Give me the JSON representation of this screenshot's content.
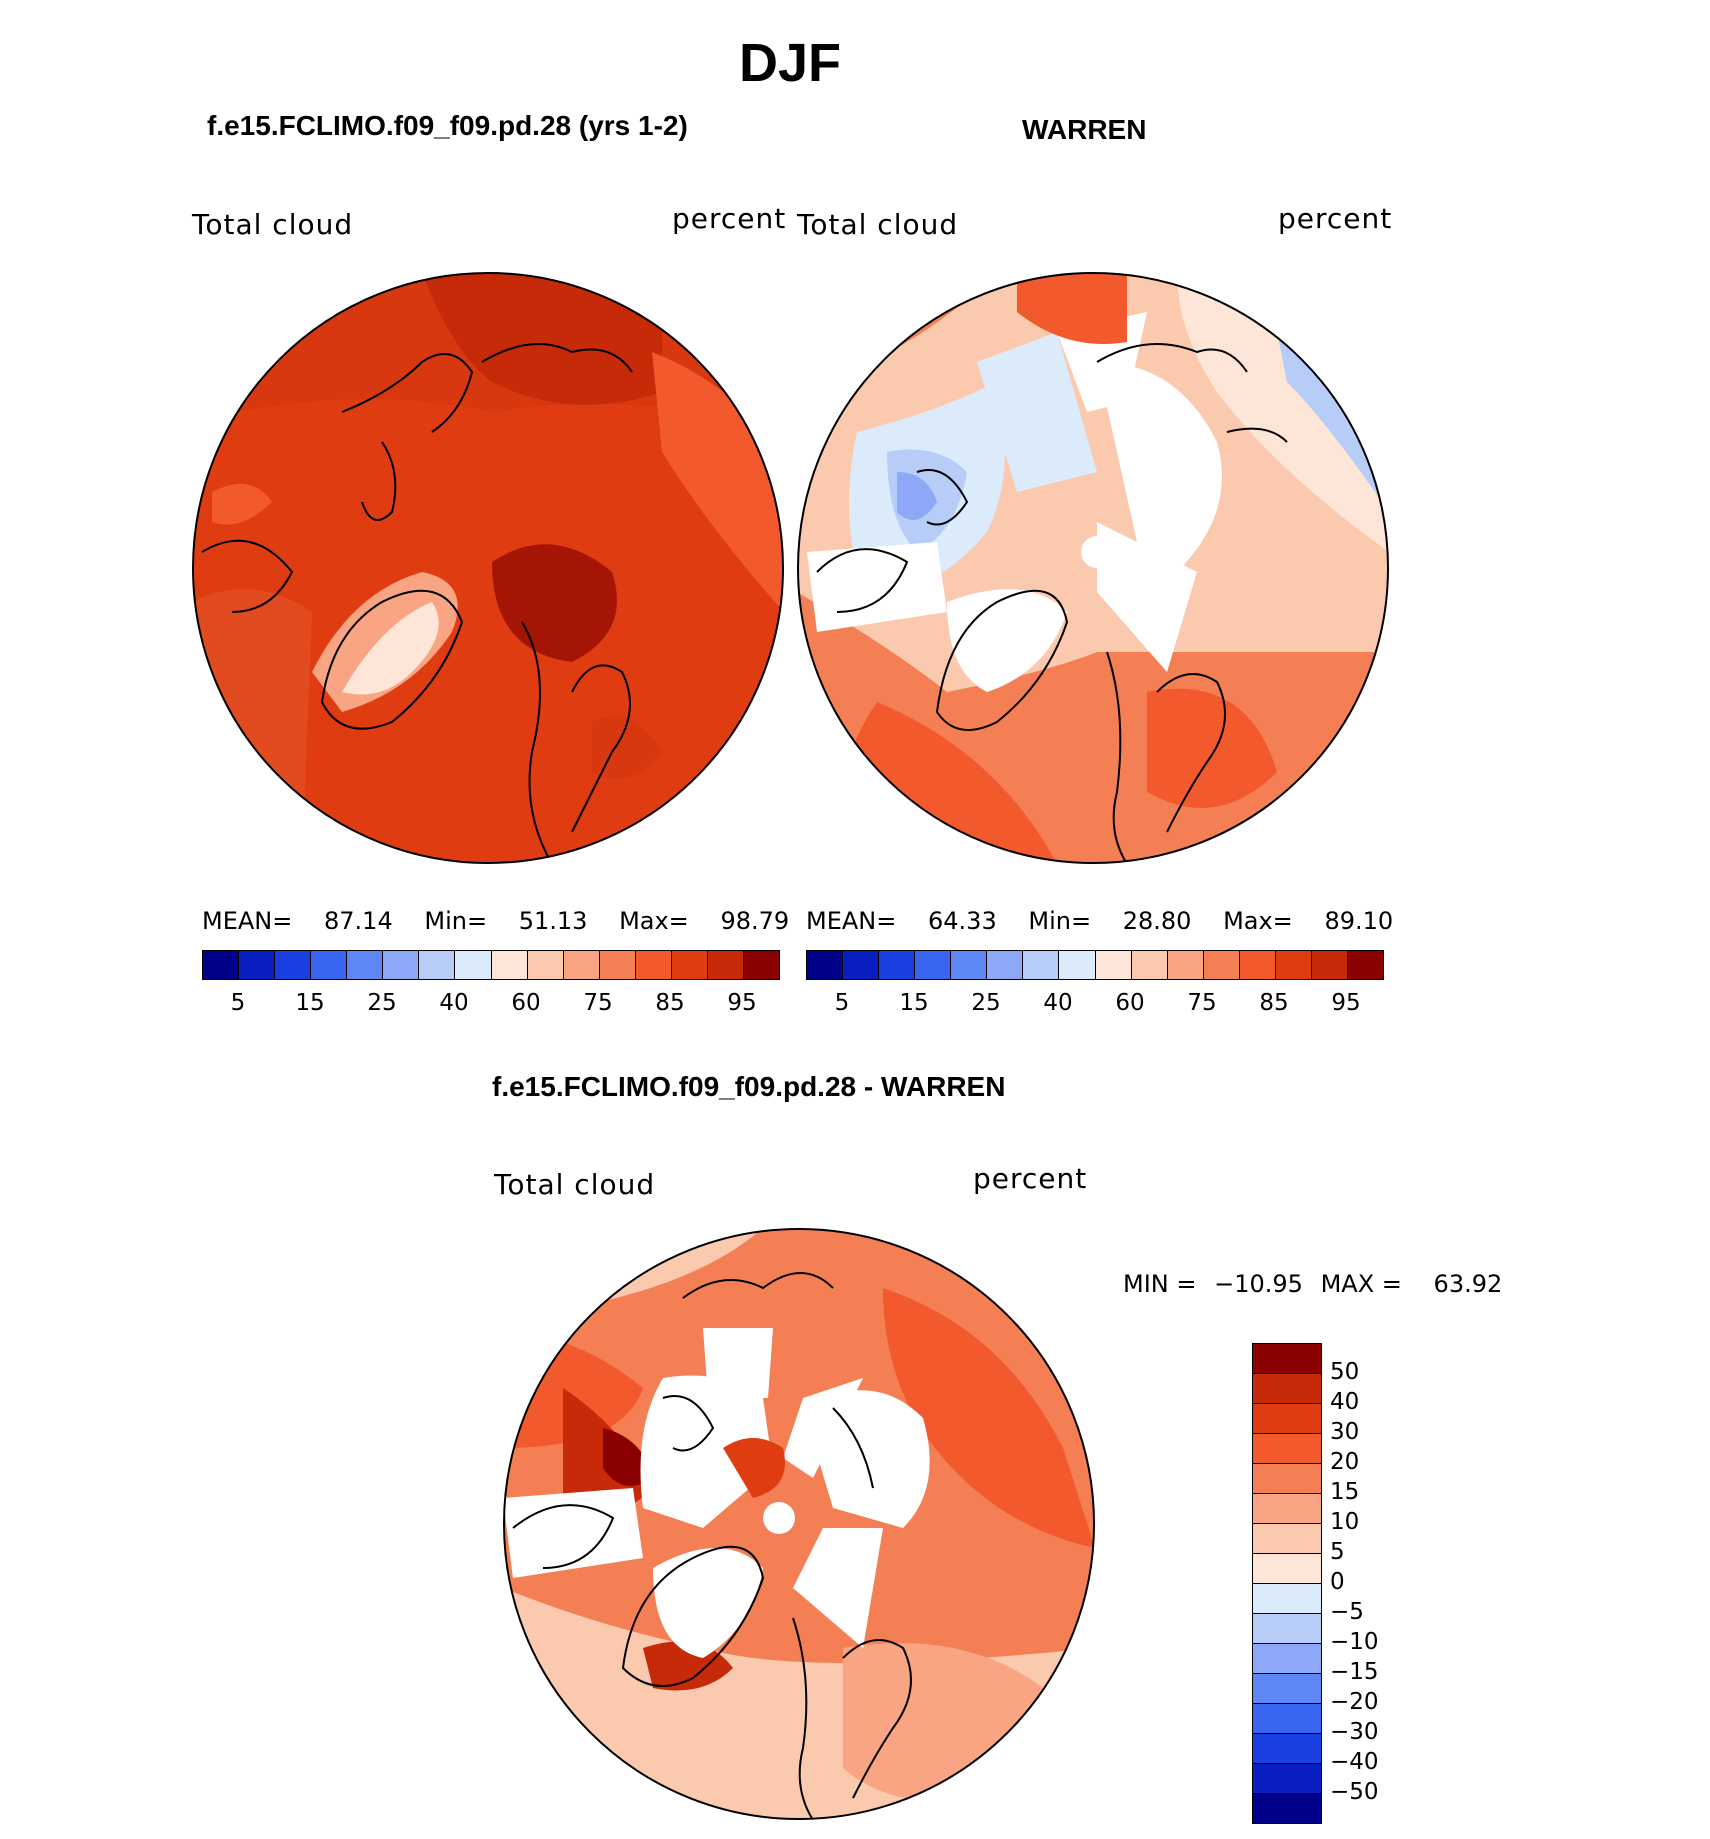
{
  "season_title": "DJF",
  "panels": [
    {
      "title": "f.e15.FCLIMO.f09_f09.pd.28 (yrs 1-2)",
      "variable": "Total cloud",
      "units": "percent",
      "stats": {
        "mean_label": "MEAN=",
        "mean": "87.14",
        "min_label": "Min=",
        "min": "51.13",
        "max_label": "Max=",
        "max": "98.79"
      }
    },
    {
      "title": "WARREN",
      "variable": "Total cloud",
      "units": "percent",
      "stats": {
        "mean_label": "MEAN=",
        "mean": "64.33",
        "min_label": "Min=",
        "min": "28.80",
        "max_label": "Max=",
        "max": "89.10"
      }
    },
    {
      "title": "f.e15.FCLIMO.f09_f09.pd.28 - WARREN",
      "variable": "Total cloud",
      "units": "percent",
      "stats": {
        "min_label": "MIN =",
        "min": "−10.95",
        "max_label": "MAX =",
        "max": "63.92"
      }
    }
  ],
  "colorbar_abs": {
    "colors": [
      "#00008b",
      "#0a1fbf",
      "#1a3fe0",
      "#3a65f0",
      "#5f86f5",
      "#8ca8f7",
      "#b7cdf8",
      "#dcebfb",
      "#fde6d8",
      "#fbc9ae",
      "#f9a482",
      "#f57f55",
      "#f25a2e",
      "#e03c12",
      "#c62a08",
      "#8b0000"
    ],
    "tick_labels": [
      "5",
      "15",
      "25",
      "40",
      "60",
      "75",
      "85",
      "95"
    ]
  },
  "colorbar_diff": {
    "colors": [
      "#8b0000",
      "#c62a08",
      "#e03c12",
      "#f25a2e",
      "#f57f55",
      "#f9a482",
      "#fbc9ae",
      "#fde6d8",
      "#dcebfb",
      "#b7cdf8",
      "#8ca8f7",
      "#5f86f5",
      "#3a65f0",
      "#1a3fe0",
      "#0a1fbf",
      "#00008b"
    ],
    "tick_labels": [
      "50",
      "40",
      "30",
      "20",
      "15",
      "10",
      "5",
      "0",
      "−5",
      "−10",
      "−15",
      "−20",
      "−30",
      "−40",
      "−50"
    ]
  }
}
